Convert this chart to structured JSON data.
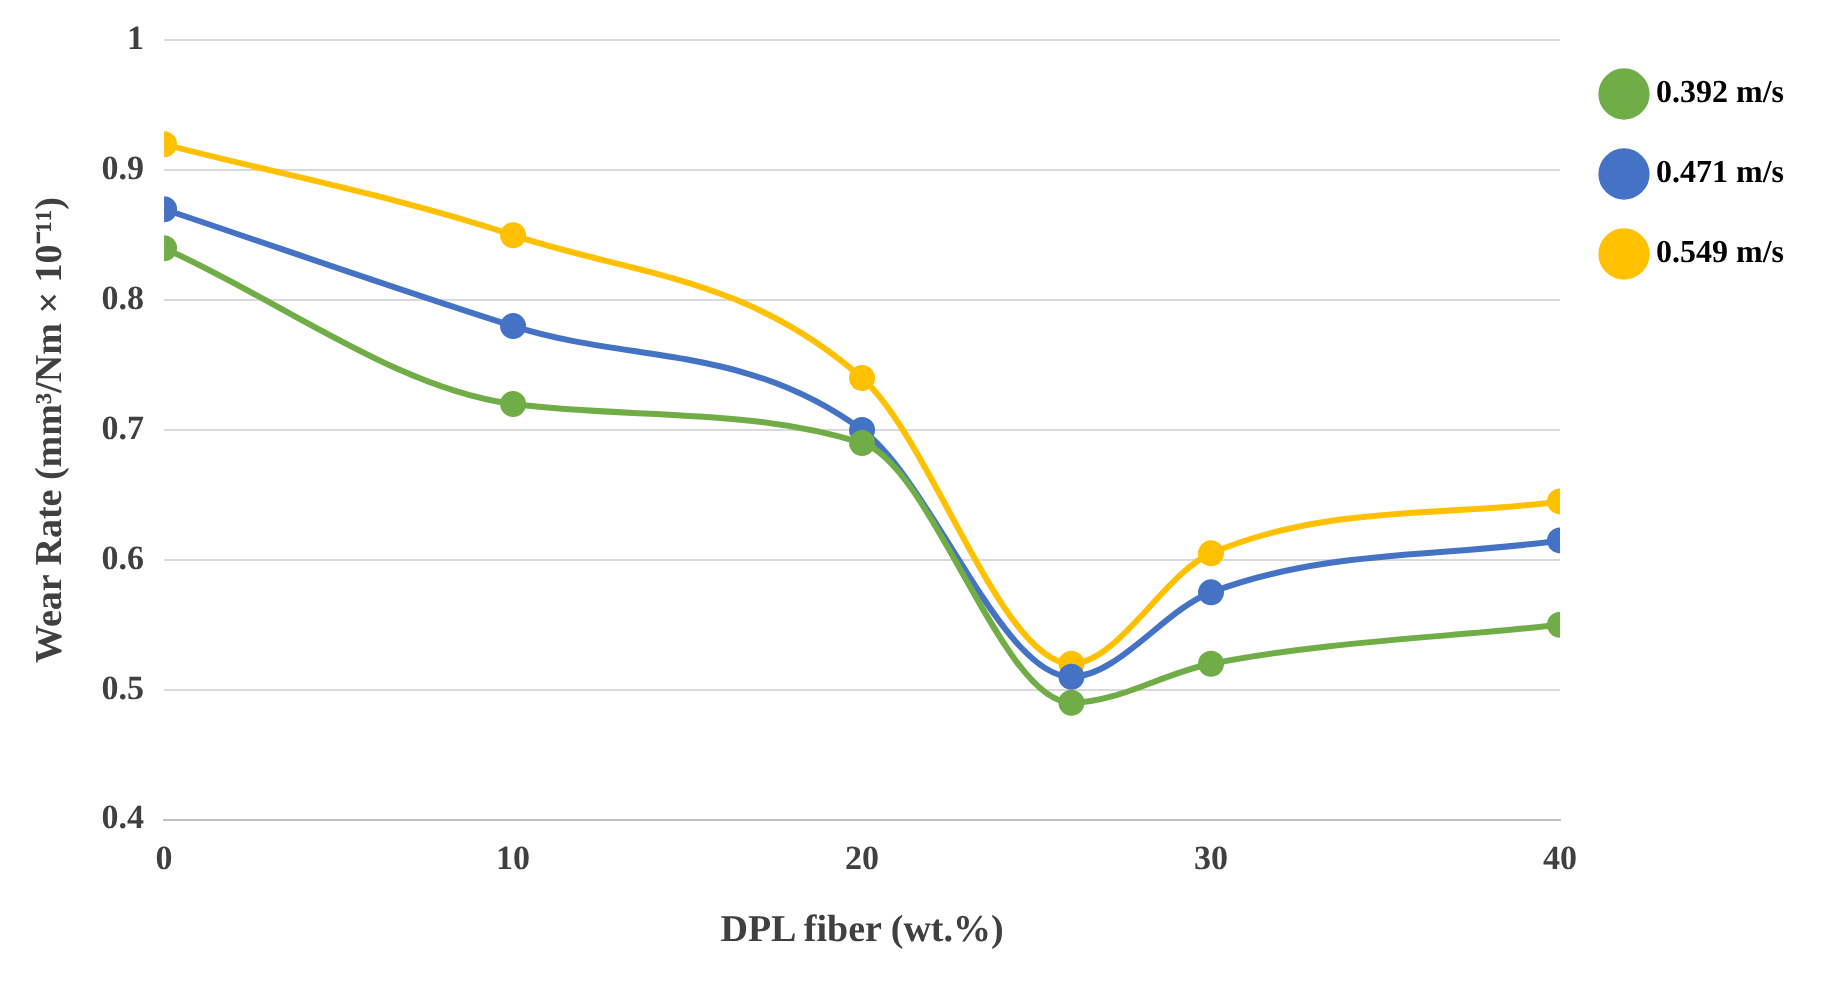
{
  "chart_data": {
    "type": "line",
    "xlabel": "DPL fiber (wt.%)",
    "ylabel": "Wear Rate (mm³/Nm × 10⁻¹¹)",
    "x": [
      0,
      10,
      20,
      26,
      30,
      40
    ],
    "series": [
      {
        "name": "0.392 m/s",
        "color": "#70ad47",
        "values": [
          0.84,
          0.72,
          0.69,
          0.49,
          0.52,
          0.55
        ]
      },
      {
        "name": "0.471 m/s",
        "color": "#4472c4",
        "values": [
          0.87,
          0.78,
          0.7,
          0.51,
          0.575,
          0.615
        ]
      },
      {
        "name": "0.549 m/s",
        "color": "#ffc000",
        "values": [
          0.92,
          0.85,
          0.74,
          0.52,
          0.605,
          0.645
        ]
      }
    ],
    "xlim": [
      0,
      40
    ],
    "xticks": [
      0,
      10,
      20,
      30,
      40
    ],
    "ylim": [
      0.4,
      1
    ],
    "yticks": [
      0.4,
      0.5,
      0.6,
      0.7,
      0.8,
      0.9,
      1
    ],
    "grid": "y",
    "legend": "top right",
    "marker": "circle",
    "line_style": "solid"
  }
}
